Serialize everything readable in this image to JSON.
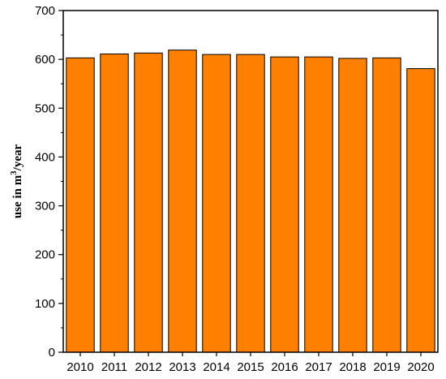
{
  "chart_data": {
    "type": "bar",
    "title": "",
    "xlabel": "",
    "ylabel": {
      "prefix": "use in m",
      "superscript": "3",
      "suffix": "/year"
    },
    "categories": [
      "2010",
      "2011",
      "2012",
      "2013",
      "2014",
      "2015",
      "2016",
      "2017",
      "2018",
      "2019",
      "2020"
    ],
    "values": [
      603,
      611,
      613,
      619,
      610,
      610,
      605,
      605,
      602,
      603,
      581
    ],
    "ylim": [
      0,
      700
    ],
    "yticks": [
      0,
      100,
      200,
      300,
      400,
      500,
      600,
      700
    ],
    "grid": false,
    "legend": "none",
    "colors": {
      "bar_fill": "#FF8000",
      "bar_stroke": "#000000",
      "axis": "#000000"
    }
  }
}
